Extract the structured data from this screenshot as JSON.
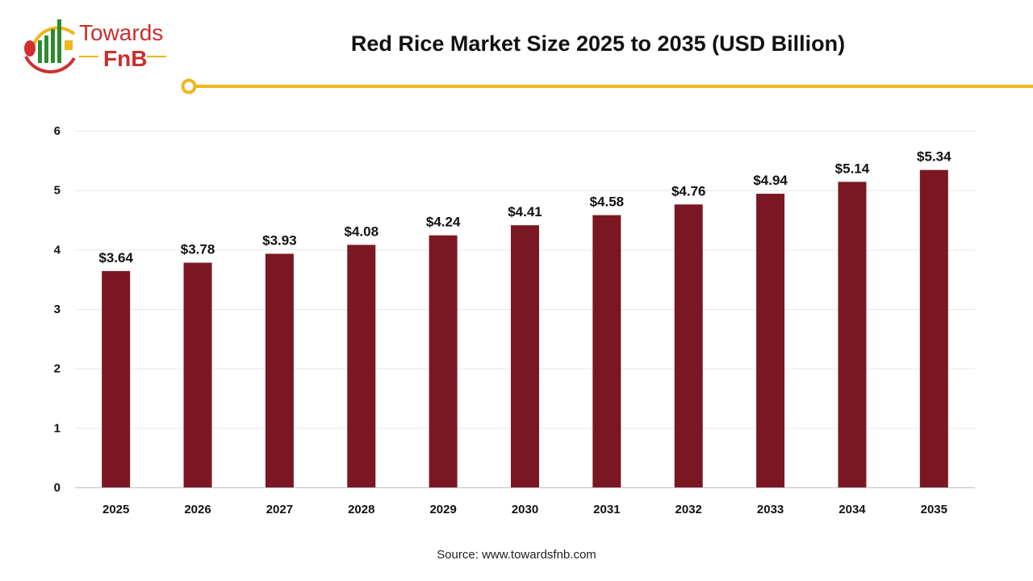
{
  "logo": {
    "text_line1": "Towards",
    "text_line2": "FnB"
  },
  "chart_data": {
    "type": "bar",
    "title": "Red Rice Market Size 2025 to 2035 (USD Billion)",
    "categories": [
      "2025",
      "2026",
      "2027",
      "2028",
      "2029",
      "2030",
      "2031",
      "2032",
      "2033",
      "2034",
      "2035"
    ],
    "values": [
      3.64,
      3.78,
      3.93,
      4.08,
      4.24,
      4.41,
      4.58,
      4.76,
      4.94,
      5.14,
      5.34
    ],
    "data_labels": [
      "$3.64",
      "$3.78",
      "$3.93",
      "$4.08",
      "$4.24",
      "$4.41",
      "$4.58",
      "$4.76",
      "$4.94",
      "$5.14",
      "$5.34"
    ],
    "yticks": [
      0,
      1,
      2,
      3,
      4,
      5,
      6
    ],
    "ylim": [
      0,
      6
    ],
    "xlabel": "",
    "ylabel": "",
    "grid": true,
    "legend": "none",
    "colors": {
      "bar": "#7B1722",
      "accent": "#F2B51C",
      "grid": "#E6E6E6"
    }
  },
  "source": "Source: www.towardsfnb.com"
}
